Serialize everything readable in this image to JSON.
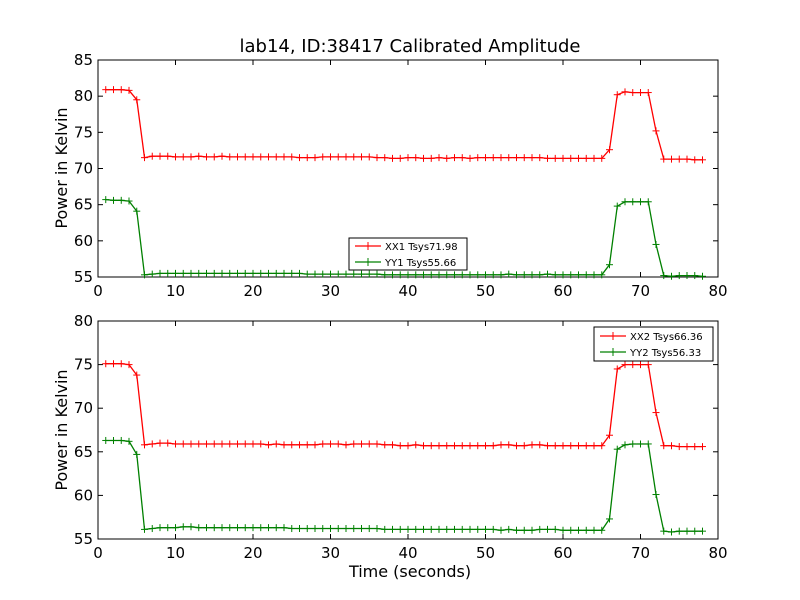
{
  "chart_data": [
    {
      "type": "line",
      "title": "lab14, ID:38417 Calibrated Amplitude",
      "xlabel": "",
      "ylabel": "Power in Kelvin",
      "xlim": [
        0,
        80
      ],
      "ylim": [
        55,
        85
      ],
      "xticks": [
        0,
        10,
        20,
        30,
        40,
        50,
        60,
        70,
        80
      ],
      "yticks": [
        55,
        60,
        65,
        70,
        75,
        80,
        85
      ],
      "grid": false,
      "legend": "bottom-center",
      "series": [
        {
          "name": "XX1 Tsys71.98",
          "color": "#ff0000",
          "x": [
            1,
            2,
            3,
            4,
            5,
            6,
            7,
            8,
            9,
            10,
            11,
            12,
            13,
            14,
            15,
            16,
            17,
            18,
            19,
            20,
            21,
            22,
            23,
            24,
            25,
            26,
            27,
            28,
            29,
            30,
            31,
            32,
            33,
            34,
            35,
            36,
            37,
            38,
            39,
            40,
            41,
            42,
            43,
            44,
            45,
            46,
            47,
            48,
            49,
            50,
            51,
            52,
            53,
            54,
            55,
            56,
            57,
            58,
            59,
            60,
            61,
            62,
            63,
            64,
            65,
            66,
            67,
            68,
            69,
            70,
            71,
            72,
            73,
            74,
            75,
            76,
            77,
            78
          ],
          "y": [
            80.9,
            80.9,
            80.9,
            80.8,
            79.5,
            71.5,
            71.7,
            71.7,
            71.7,
            71.6,
            71.6,
            71.6,
            71.7,
            71.6,
            71.6,
            71.7,
            71.6,
            71.6,
            71.6,
            71.6,
            71.6,
            71.6,
            71.6,
            71.6,
            71.6,
            71.5,
            71.5,
            71.5,
            71.6,
            71.6,
            71.6,
            71.6,
            71.6,
            71.6,
            71.6,
            71.5,
            71.5,
            71.4,
            71.4,
            71.5,
            71.5,
            71.4,
            71.4,
            71.5,
            71.4,
            71.5,
            71.5,
            71.4,
            71.5,
            71.5,
            71.5,
            71.5,
            71.5,
            71.5,
            71.5,
            71.5,
            71.5,
            71.4,
            71.4,
            71.4,
            71.4,
            71.4,
            71.4,
            71.4,
            71.4,
            72.6,
            80.2,
            80.6,
            80.5,
            80.5,
            80.5,
            75.2,
            71.3,
            71.3,
            71.3,
            71.3,
            71.2,
            71.2
          ]
        },
        {
          "name": "YY1 Tsys55.66",
          "color": "#008000",
          "x": [
            1,
            2,
            3,
            4,
            5,
            6,
            7,
            8,
            9,
            10,
            11,
            12,
            13,
            14,
            15,
            16,
            17,
            18,
            19,
            20,
            21,
            22,
            23,
            24,
            25,
            26,
            27,
            28,
            29,
            30,
            31,
            32,
            33,
            34,
            35,
            36,
            37,
            38,
            39,
            40,
            41,
            42,
            43,
            44,
            45,
            46,
            47,
            48,
            49,
            50,
            51,
            52,
            53,
            54,
            55,
            56,
            57,
            58,
            59,
            60,
            61,
            62,
            63,
            64,
            65,
            66,
            67,
            68,
            69,
            70,
            71,
            72,
            73,
            74,
            75,
            76,
            77,
            78
          ],
          "y": [
            65.7,
            65.6,
            65.6,
            65.5,
            64.1,
            55.3,
            55.4,
            55.5,
            55.5,
            55.5,
            55.5,
            55.5,
            55.5,
            55.5,
            55.5,
            55.5,
            55.5,
            55.5,
            55.5,
            55.5,
            55.5,
            55.5,
            55.5,
            55.5,
            55.5,
            55.5,
            55.4,
            55.4,
            55.4,
            55.4,
            55.4,
            55.4,
            55.4,
            55.4,
            55.4,
            55.4,
            55.3,
            55.3,
            55.3,
            55.3,
            55.3,
            55.3,
            55.3,
            55.3,
            55.3,
            55.3,
            55.3,
            55.3,
            55.3,
            55.3,
            55.3,
            55.3,
            55.4,
            55.3,
            55.3,
            55.3,
            55.3,
            55.4,
            55.3,
            55.3,
            55.3,
            55.3,
            55.3,
            55.3,
            55.3,
            56.7,
            64.8,
            65.4,
            65.4,
            65.4,
            65.4,
            59.5,
            55.2,
            55.1,
            55.2,
            55.2,
            55.2,
            55.1
          ]
        }
      ]
    },
    {
      "type": "line",
      "title": "",
      "xlabel": "Time (seconds)",
      "ylabel": "Power in Kelvin",
      "xlim": [
        0,
        80
      ],
      "ylim": [
        55,
        80
      ],
      "xticks": [
        0,
        10,
        20,
        30,
        40,
        50,
        60,
        70,
        80
      ],
      "yticks": [
        55,
        60,
        65,
        70,
        75,
        80
      ],
      "grid": false,
      "legend": "top-right",
      "series": [
        {
          "name": "XX2 Tsys66.36",
          "color": "#ff0000",
          "x": [
            1,
            2,
            3,
            4,
            5,
            6,
            7,
            8,
            9,
            10,
            11,
            12,
            13,
            14,
            15,
            16,
            17,
            18,
            19,
            20,
            21,
            22,
            23,
            24,
            25,
            26,
            27,
            28,
            29,
            30,
            31,
            32,
            33,
            34,
            35,
            36,
            37,
            38,
            39,
            40,
            41,
            42,
            43,
            44,
            45,
            46,
            47,
            48,
            49,
            50,
            51,
            52,
            53,
            54,
            55,
            56,
            57,
            58,
            59,
            60,
            61,
            62,
            63,
            64,
            65,
            66,
            67,
            68,
            69,
            70,
            71,
            72,
            73,
            74,
            75,
            76,
            77,
            78
          ],
          "y": [
            75.1,
            75.1,
            75.1,
            75.0,
            73.8,
            65.8,
            65.9,
            66.0,
            66.0,
            65.9,
            65.9,
            65.9,
            65.9,
            65.9,
            65.9,
            65.9,
            65.9,
            65.9,
            65.9,
            65.9,
            65.9,
            65.8,
            65.9,
            65.8,
            65.8,
            65.8,
            65.8,
            65.8,
            65.9,
            65.9,
            65.9,
            65.8,
            65.9,
            65.9,
            65.9,
            65.9,
            65.8,
            65.8,
            65.7,
            65.7,
            65.8,
            65.7,
            65.7,
            65.7,
            65.7,
            65.7,
            65.7,
            65.7,
            65.7,
            65.7,
            65.7,
            65.8,
            65.8,
            65.7,
            65.7,
            65.8,
            65.8,
            65.7,
            65.7,
            65.7,
            65.7,
            65.7,
            65.7,
            65.7,
            65.7,
            66.9,
            74.5,
            75.0,
            75.0,
            75.0,
            75.0,
            69.5,
            65.7,
            65.7,
            65.6,
            65.6,
            65.6,
            65.6
          ]
        },
        {
          "name": "YY2 Tsys56.33",
          "color": "#008000",
          "x": [
            1,
            2,
            3,
            4,
            5,
            6,
            7,
            8,
            9,
            10,
            11,
            12,
            13,
            14,
            15,
            16,
            17,
            18,
            19,
            20,
            21,
            22,
            23,
            24,
            25,
            26,
            27,
            28,
            29,
            30,
            31,
            32,
            33,
            34,
            35,
            36,
            37,
            38,
            39,
            40,
            41,
            42,
            43,
            44,
            45,
            46,
            47,
            48,
            49,
            50,
            51,
            52,
            53,
            54,
            55,
            56,
            57,
            58,
            59,
            60,
            61,
            62,
            63,
            64,
            65,
            66,
            67,
            68,
            69,
            70,
            71,
            72,
            73,
            74,
            75,
            76,
            77,
            78
          ],
          "y": [
            66.3,
            66.3,
            66.3,
            66.2,
            64.7,
            56.1,
            56.2,
            56.3,
            56.3,
            56.3,
            56.4,
            56.4,
            56.3,
            56.3,
            56.3,
            56.3,
            56.3,
            56.3,
            56.3,
            56.3,
            56.3,
            56.3,
            56.3,
            56.3,
            56.2,
            56.2,
            56.2,
            56.2,
            56.2,
            56.2,
            56.2,
            56.2,
            56.2,
            56.2,
            56.2,
            56.2,
            56.1,
            56.1,
            56.1,
            56.1,
            56.1,
            56.1,
            56.1,
            56.1,
            56.1,
            56.1,
            56.1,
            56.1,
            56.1,
            56.1,
            56.1,
            56.0,
            56.1,
            56.0,
            56.0,
            56.0,
            56.1,
            56.1,
            56.1,
            56.0,
            56.0,
            56.0,
            56.0,
            56.0,
            56.0,
            57.3,
            65.3,
            65.8,
            65.9,
            65.9,
            65.9,
            60.1,
            55.9,
            55.8,
            55.9,
            55.9,
            55.9,
            55.9
          ]
        }
      ]
    }
  ]
}
